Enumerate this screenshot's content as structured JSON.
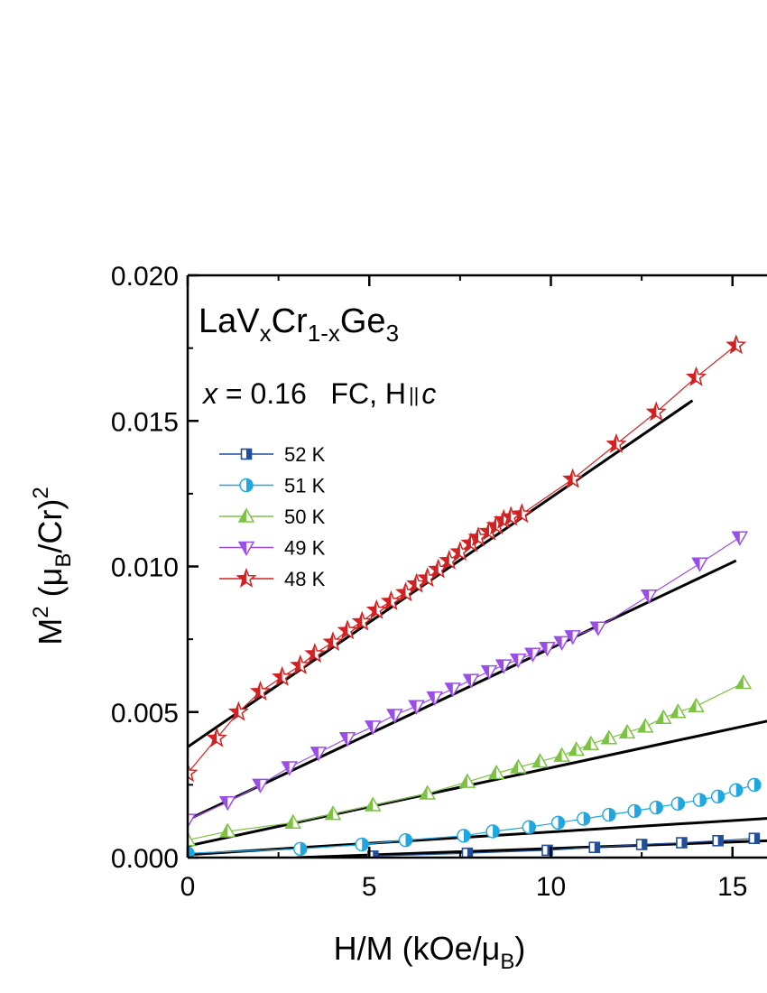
{
  "chart_data": {
    "type": "scatter",
    "xlim": [
      0,
      16
    ],
    "ylim": [
      0,
      0.02
    ],
    "x_ticks": [
      0,
      5,
      10,
      15
    ],
    "x_tick_labels": [
      "0",
      "5",
      "10",
      "15"
    ],
    "y_ticks": [
      0,
      0.005,
      0.01,
      0.015,
      0.02
    ],
    "y_tick_labels": [
      "0.000",
      "0.005",
      "0.010",
      "0.015",
      "0.020"
    ],
    "xlabel": {
      "main": "H/M (kOe/μ",
      "sub": "B",
      "tail": ")"
    },
    "ylabel": {
      "m": "M",
      "sup2": "2",
      "open": " (μ",
      "sub": "B",
      "mid": "/Cr)",
      "sup": "2"
    },
    "annotation_formula": {
      "a": "LaV",
      "b": "x",
      "c": "Cr",
      "d": "1-x",
      "e": "Ge",
      "f": "3"
    },
    "annotation_conditions": {
      "x": "x",
      "eq": " = 0.16   FC, H",
      "par": "||",
      "c": "c"
    },
    "legend_position": "upper-left",
    "series": [
      {
        "name": "52 K",
        "color": "#1f4e9c",
        "marker": "square",
        "x": [
          5.1,
          7.7,
          9.9,
          11.2,
          12.5,
          13.6,
          14.6,
          15.6
        ],
        "y": [
          5e-05,
          0.00015,
          0.00025,
          0.00035,
          0.00045,
          0.00051,
          0.00058,
          0.00066
        ]
      },
      {
        "name": "51 K",
        "color": "#1ea7e0",
        "marker": "circle",
        "x": [
          0.0,
          3.1,
          4.8,
          6.0,
          7.6,
          8.4,
          9.4,
          10.2,
          10.9,
          11.6,
          12.3,
          12.9,
          13.5,
          14.1,
          14.6,
          15.1,
          15.6
        ],
        "y": [
          0.00015,
          0.0003,
          0.00045,
          0.0006,
          0.00075,
          0.0009,
          0.00105,
          0.0012,
          0.00133,
          0.00147,
          0.0016,
          0.00172,
          0.00185,
          0.00198,
          0.0021,
          0.00232,
          0.0025
        ]
      },
      {
        "name": "50 K",
        "color": "#7dc242",
        "marker": "triangle-up",
        "x": [
          0.0,
          1.1,
          2.9,
          4.0,
          5.1,
          6.6,
          7.7,
          8.5,
          9.1,
          9.7,
          10.3,
          10.7,
          11.1,
          11.6,
          12.1,
          12.6,
          13.1,
          13.5,
          14.0,
          15.3
        ],
        "y": [
          0.0006,
          0.0009,
          0.0012,
          0.0015,
          0.0018,
          0.0022,
          0.0026,
          0.0029,
          0.0031,
          0.0033,
          0.0035,
          0.0037,
          0.0039,
          0.0041,
          0.0043,
          0.0045,
          0.0048,
          0.005,
          0.0052,
          0.006
        ]
      },
      {
        "name": "49 K",
        "color": "#9b4de8",
        "marker": "triangle-down",
        "x": [
          0.0,
          1.1,
          2.0,
          2.8,
          3.6,
          4.4,
          5.1,
          5.7,
          6.3,
          6.8,
          7.3,
          7.8,
          8.3,
          8.7,
          9.1,
          9.5,
          9.9,
          10.3,
          10.6,
          11.3,
          12.7,
          14.1,
          15.2
        ],
        "y": [
          0.0013,
          0.0019,
          0.0025,
          0.0031,
          0.0036,
          0.0041,
          0.0045,
          0.0049,
          0.0052,
          0.0055,
          0.0058,
          0.0061,
          0.0064,
          0.0066,
          0.0068,
          0.007,
          0.0072,
          0.0074,
          0.0076,
          0.0079,
          0.009,
          0.0101,
          0.011
        ]
      },
      {
        "name": "48 K",
        "color": "#d42020",
        "marker": "star",
        "x": [
          0.0,
          0.8,
          1.4,
          2.0,
          2.6,
          3.1,
          3.5,
          4.0,
          4.4,
          4.8,
          5.2,
          5.6,
          6.0,
          6.3,
          6.6,
          6.9,
          7.2,
          7.5,
          7.8,
          8.0,
          8.3,
          8.5,
          8.7,
          8.9,
          9.2,
          10.6,
          11.8,
          12.9,
          14.0,
          15.1
        ],
        "y": [
          0.0029,
          0.0041,
          0.005,
          0.0057,
          0.0062,
          0.0066,
          0.007,
          0.0074,
          0.0078,
          0.0081,
          0.0085,
          0.0088,
          0.0091,
          0.0094,
          0.0096,
          0.0099,
          0.0102,
          0.0105,
          0.0108,
          0.011,
          0.0112,
          0.0114,
          0.0116,
          0.0117,
          0.0118,
          0.013,
          0.0142,
          0.0153,
          0.0165,
          0.0176
        ]
      }
    ],
    "fit_lines": [
      {
        "x": [
          3.0,
          16.0
        ],
        "y": [
          0.0,
          0.00058
        ]
      },
      {
        "x": [
          0.0,
          16.0
        ],
        "y": [
          0.0001,
          0.00135
        ]
      },
      {
        "x": [
          0.0,
          16.0
        ],
        "y": [
          0.0004,
          0.0047
        ]
      },
      {
        "x": [
          0.0,
          15.1
        ],
        "y": [
          0.0013,
          0.0102
        ]
      },
      {
        "x": [
          0.0,
          13.9
        ],
        "y": [
          0.0038,
          0.0157
        ]
      }
    ]
  }
}
